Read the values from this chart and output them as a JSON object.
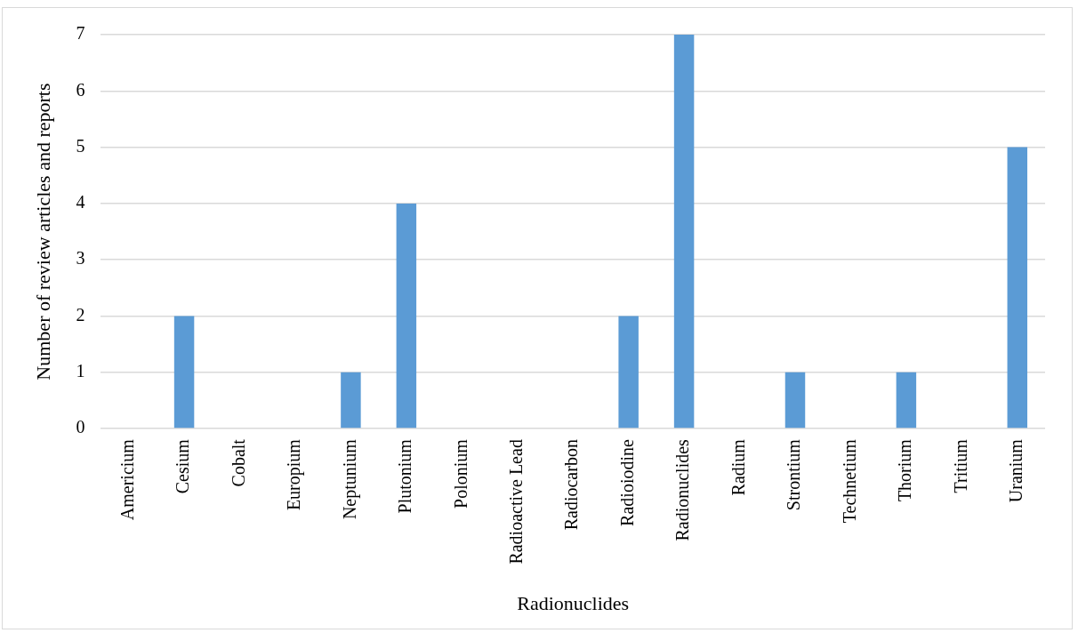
{
  "chart_data": {
    "type": "bar",
    "xlabel": "Radionuclides",
    "ylabel": "Number of review articles and reports",
    "categories": [
      "Americium",
      "Cesium",
      "Cobalt",
      "Europium",
      "Neptunium",
      "Plutonium",
      "Polonium",
      "Radioactive Lead",
      "Radiocarbon",
      "Radioiodine",
      "Radionuclides",
      "Radium",
      "Strontium",
      "Technetium",
      "Thorium",
      "Tritium",
      "Uranium"
    ],
    "values": [
      0,
      2,
      0,
      0,
      1,
      4,
      0,
      0,
      0,
      2,
      7,
      0,
      1,
      0,
      1,
      0,
      5
    ],
    "color": "#5b9bd5",
    "ylim": [
      0,
      7
    ],
    "yticks": [
      0,
      1,
      2,
      3,
      4,
      5,
      6,
      7
    ],
    "grid": "y",
    "legend": false
  }
}
